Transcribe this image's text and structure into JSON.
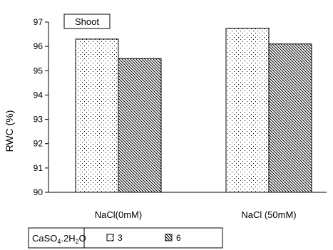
{
  "chart_data": {
    "type": "bar",
    "title": "Shoot",
    "ylabel": "RWC (%)",
    "xlabel": "",
    "ylim": [
      90,
      97
    ],
    "yticks": [
      90,
      91,
      92,
      93,
      94,
      95,
      96,
      97
    ],
    "categories": [
      "NaCl(0mM)",
      "NaCl (50mM)"
    ],
    "series": [
      {
        "name": "3",
        "values": [
          96.3,
          96.75
        ],
        "pattern": "dots"
      },
      {
        "name": "6",
        "values": [
          95.5,
          96.1
        ],
        "pattern": "diagonal-hatch"
      }
    ],
    "legend": {
      "title_parts": [
        "CaSO",
        "4",
        ".2H",
        "2",
        "O"
      ],
      "placement": "bottom-left"
    },
    "grid": false
  }
}
